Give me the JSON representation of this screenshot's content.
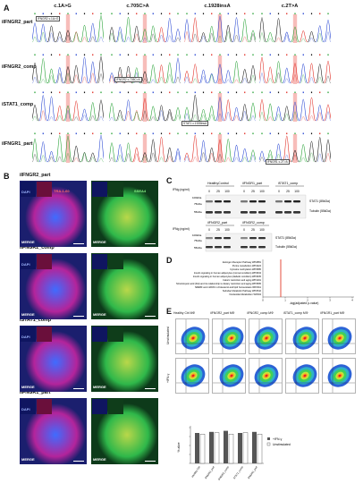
{
  "panelA": {
    "letter": "A",
    "columns": [
      "c.1A>G",
      "c.705C>A",
      "c.1928insA",
      "c.2T>A"
    ],
    "rows": [
      "iIFNGR2_part",
      "iIFNGR2_comp",
      "iSTAT1_comp",
      "iIFNGR1_part"
    ],
    "annotations": {
      "r0c0": "IFNGR2 c.1A>G",
      "r1c1": "IFNGR2 c.705C>A",
      "r2c2": "STAT1 c.1928insA",
      "r3c3": "IFNGR1 c.2T>A"
    }
  },
  "panelB": {
    "letter": "B",
    "rows": [
      "iIFNGR2_part",
      "iIFNGR2_comp",
      "iSTAT1_comp",
      "iIFNGR1_part"
    ],
    "dapi": "DAPI",
    "tra160": "TRA-1-60",
    "ssea4": "SSEA4",
    "merge": "MERGE"
  },
  "panelC": {
    "letter": "C",
    "ifng_label": "IFNg (ng/ml)",
    "groups_top": [
      "HealthyControl",
      "iIFNGR1_part",
      "iSTAT1_comp"
    ],
    "groups_bottom": [
      "iIFNGR2_part",
      "iIFNGR2_comp"
    ],
    "doses_top": [
      "0",
      "25",
      "100",
      "0",
      "25",
      "100",
      "0",
      "25",
      "100"
    ],
    "doses_bottom": [
      "0",
      "25",
      "100",
      "0",
      "25",
      "100"
    ],
    "band_labels": [
      "STAT1 (85kDa)",
      "Tubulin (55kDa)"
    ],
    "marker_labels": [
      "100kDa",
      "75kDa",
      "55kDa"
    ]
  },
  "panelD": {
    "letter": "D",
    "pathways": [
      "Estrogen Receptor Pathway WP2881",
      "Purine metabolism WP4224",
      "Cytosine methylation WP3585",
      "Insulin signaling in human adipocytes (normal condition) WP3634",
      "Insulin signaling in human adipocytes (diabetic condition) WP3635",
      "Caloric restriction and aging WP4191",
      "Sirtuin/Lipoic acid (DH) and its relationship to dietary restriction and aging WP3595",
      "SREBF and miR33 in cholesterol and lipid homeostasis WP2011",
      "Sulindac Metabolic Pathway WP2542",
      "Nucleotide Metabolism WP404"
    ],
    "xlabel": "-log(adjusted p-value)",
    "xticks": [
      "0",
      "1",
      "2",
      "3",
      "4"
    ]
  },
  "panelE": {
    "letter": "E",
    "columns": [
      "Healthy Ctrl MΦ",
      "iIFNGR2_part MΦ",
      "iIFNGR2_comp MΦ",
      "iSTAT1_comp MΦ",
      "iIFNGR1_part MΦ"
    ],
    "row_labels": [
      "Unstimulated",
      "+IFN-γ"
    ],
    "legend": [
      "+IFN-γ",
      "Unstimulated"
    ],
    "bar_ylabel": "% alive",
    "bar_xlabels": [
      "Healthy Ctrl",
      "IFNGR2_part",
      "IFNGR2_comp",
      "STAT1_comp",
      "IFNGR1_part"
    ]
  },
  "colors": {
    "trace_a": "#1a9c2a",
    "trace_c": "#1f3fd1",
    "trace_g": "#111111",
    "trace_t": "#e0241b",
    "highlight": "#f4a7a3",
    "pathway_line": "#e23b2a"
  }
}
